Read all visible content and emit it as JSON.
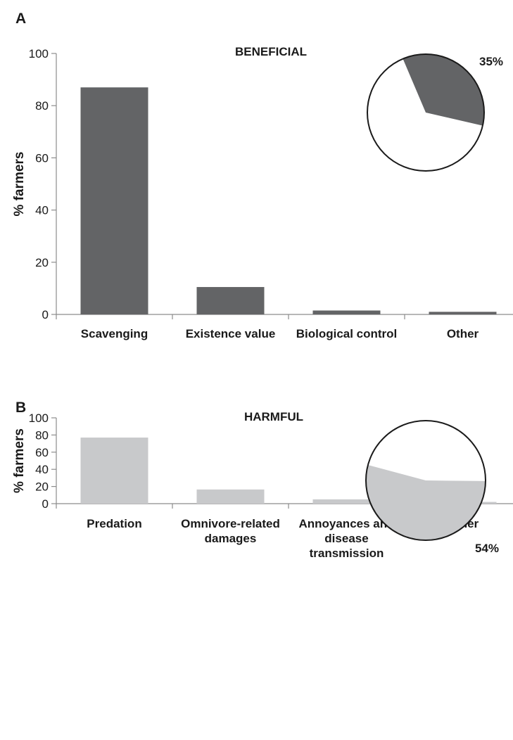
{
  "figure": {
    "panels": [
      "A",
      "B"
    ]
  },
  "chart_data": [
    {
      "type": "bar",
      "panel": "A",
      "title": "BENEFICIAL",
      "ylabel": "% farmers",
      "ylim": [
        0,
        100
      ],
      "yticks": [
        0,
        20,
        40,
        60,
        80,
        100
      ],
      "categories": [
        [
          "Scavenging"
        ],
        [
          "Existence value"
        ],
        [
          "Biological control"
        ],
        [
          "Other"
        ]
      ],
      "values": [
        87,
        10.5,
        1.5,
        1
      ],
      "bar_color": "#636466",
      "grid": false,
      "inset_pie": {
        "label": "35%",
        "value_percent": 35,
        "filled_color": "#636466",
        "remainder_color": "#ffffff",
        "label_position": "top-right"
      }
    },
    {
      "type": "bar",
      "panel": "B",
      "title": "HARMFUL",
      "ylabel": "% farmers",
      "ylim": [
        0,
        100
      ],
      "yticks": [
        0,
        20,
        40,
        60,
        80,
        100
      ],
      "categories": [
        [
          "Predation"
        ],
        [
          "Omnivore-related",
          "damages"
        ],
        [
          "Annoyances and",
          "disease",
          "transmission"
        ],
        [
          "Other"
        ]
      ],
      "values": [
        77,
        16.5,
        5,
        2
      ],
      "bar_color": "#c8c9cb",
      "grid": false,
      "inset_pie": {
        "label": "54%",
        "value_percent": 54,
        "filled_color": "#c8c9cb",
        "remainder_color": "#ffffff",
        "label_position": "bottom-right"
      }
    }
  ]
}
